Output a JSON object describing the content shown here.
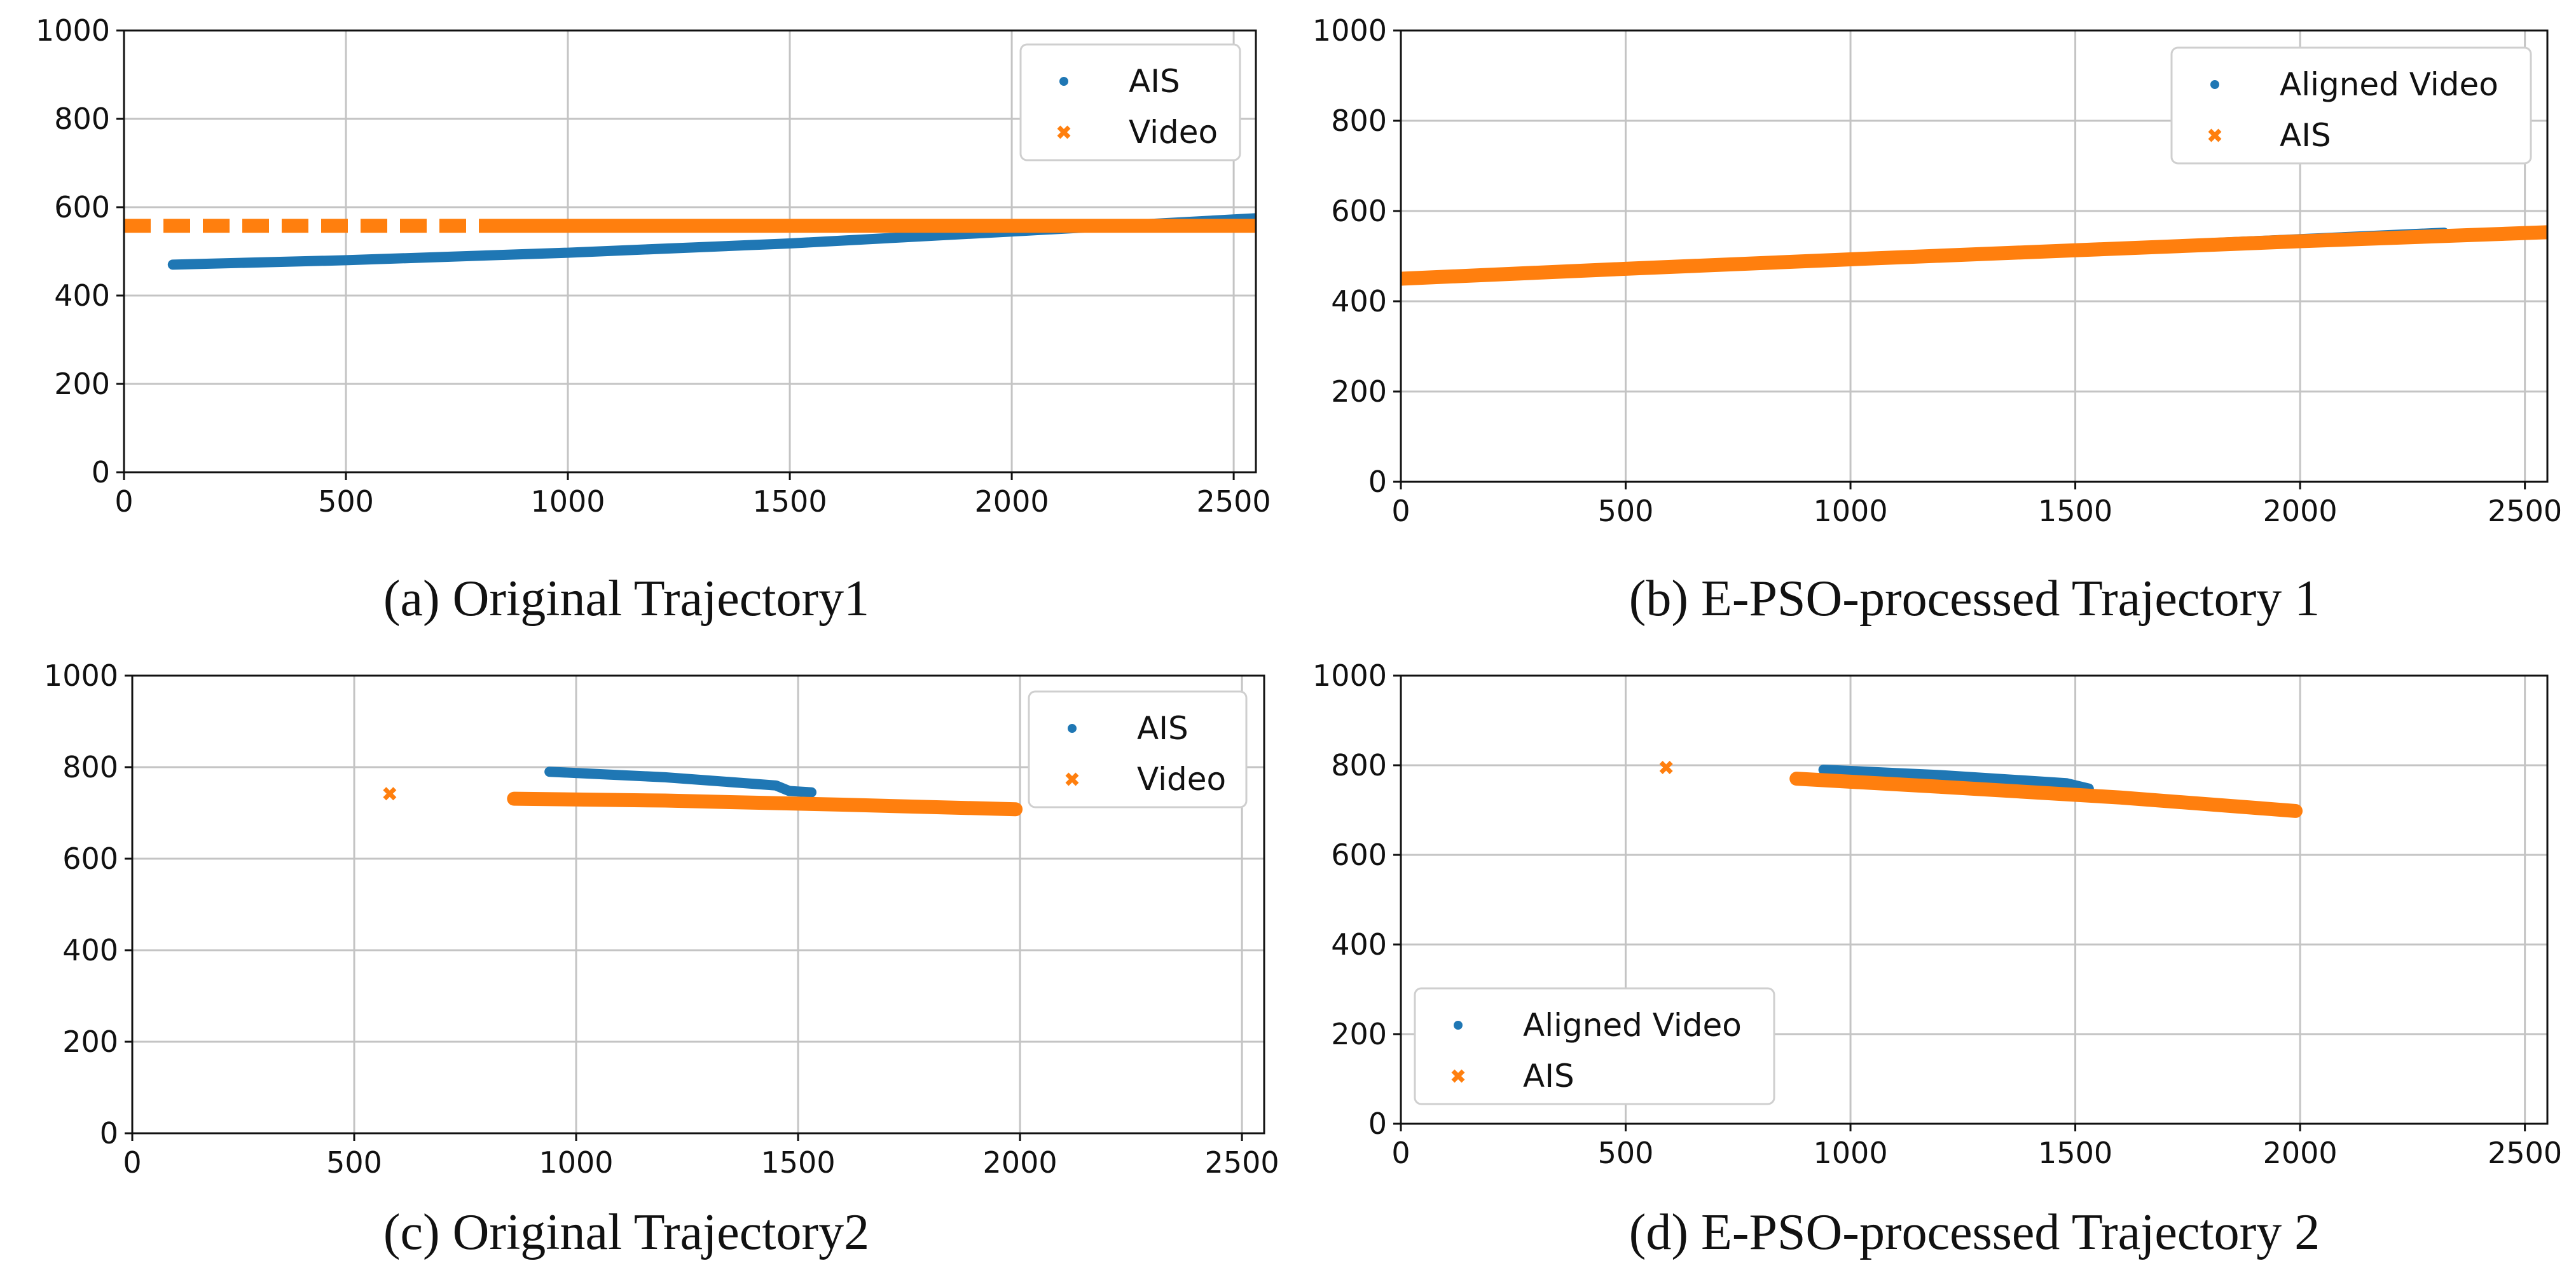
{
  "colors": {
    "ais_blue": "#1f77b4",
    "video_orange": "#ff7f0e",
    "grid": "#c4c4c4"
  },
  "chart_data": [
    {
      "type": "scatter",
      "caption": "(a)  Original Trajectory1",
      "xlim": [
        0,
        2550
      ],
      "ylim": [
        0,
        1000
      ],
      "xticks": [
        0,
        500,
        1000,
        1500,
        2000,
        2500
      ],
      "yticks": [
        0,
        200,
        400,
        600,
        800,
        1000
      ],
      "grid": true,
      "legend_position": "top-right",
      "series": [
        {
          "name": "AIS",
          "marker": "dot",
          "color": "#1f77b4",
          "segments": [
            {
              "x": [
                110,
                500,
                1000,
                1500,
                2000,
                2550
              ],
              "y": [
                470,
                480,
                497,
                518,
                545,
                575
              ]
            }
          ]
        },
        {
          "name": "Video",
          "marker": "x",
          "color": "#ff7f0e",
          "segments": [
            {
              "x": [
                0,
                2550
              ],
              "y": [
                558,
                558
              ],
              "dashed_until": 800
            }
          ]
        }
      ]
    },
    {
      "type": "scatter",
      "caption": "(b)  E-PSO-processed Trajectory 1",
      "xlim": [
        0,
        2550
      ],
      "ylim": [
        0,
        1000
      ],
      "xticks": [
        0,
        500,
        1000,
        1500,
        2000,
        2500
      ],
      "yticks": [
        0,
        200,
        400,
        600,
        800,
        1000
      ],
      "grid": true,
      "legend_position": "top-right",
      "series": [
        {
          "name": "Aligned Video",
          "marker": "dot",
          "color": "#1f77b4",
          "segments": [
            {
              "x": [
                80,
                1000,
                2320
              ],
              "y": [
                455,
                493,
                552
              ]
            }
          ]
        },
        {
          "name": "AIS",
          "marker": "x",
          "color": "#ff7f0e",
          "segments": [
            {
              "x": [
                0,
                500,
                1000,
                1500,
                2000,
                2550
              ],
              "y": [
                450,
                472,
                493,
                513,
                533,
                553
              ]
            }
          ]
        }
      ]
    },
    {
      "type": "scatter",
      "caption": "(c)  Original Trajectory2",
      "xlim": [
        0,
        2550
      ],
      "ylim": [
        0,
        1000
      ],
      "xticks": [
        0,
        500,
        1000,
        1500,
        2000,
        2500
      ],
      "yticks": [
        0,
        200,
        400,
        600,
        800,
        1000
      ],
      "grid": true,
      "legend_position": "top-right",
      "series": [
        {
          "name": "AIS",
          "marker": "dot",
          "color": "#1f77b4",
          "segments": [
            {
              "x": [
                940,
                1200,
                1450,
                1480,
                1530
              ],
              "y": [
                790,
                778,
                760,
                748,
                745
              ]
            }
          ]
        },
        {
          "name": "Video",
          "marker": "x",
          "color": "#ff7f0e",
          "segments": [
            {
              "x": [
                580,
                580
              ],
              "y": [
                742,
                742
              ]
            },
            {
              "x": [
                860,
                1200,
                1600,
                1990
              ],
              "y": [
                731,
                727,
                718,
                708
              ]
            }
          ]
        }
      ]
    },
    {
      "type": "scatter",
      "caption": "(d)  E-PSO-processed Trajectory 2",
      "xlim": [
        0,
        2550
      ],
      "ylim": [
        0,
        1000
      ],
      "xticks": [
        0,
        500,
        1000,
        1500,
        2000,
        2500
      ],
      "yticks": [
        0,
        200,
        400,
        600,
        800,
        1000
      ],
      "grid": true,
      "legend_position": "lower-left",
      "series": [
        {
          "name": "Aligned Video",
          "marker": "dot",
          "color": "#1f77b4",
          "segments": [
            {
              "x": [
                940,
                1200,
                1480,
                1530
              ],
              "y": [
                790,
                778,
                760,
                748
              ]
            }
          ]
        },
        {
          "name": "AIS",
          "marker": "x",
          "color": "#ff7f0e",
          "segments": [
            {
              "x": [
                590,
                590
              ],
              "y": [
                795,
                795
              ]
            },
            {
              "x": [
                880,
                1200,
                1600,
                1990
              ],
              "y": [
                770,
                752,
                728,
                698
              ]
            }
          ]
        }
      ]
    }
  ]
}
